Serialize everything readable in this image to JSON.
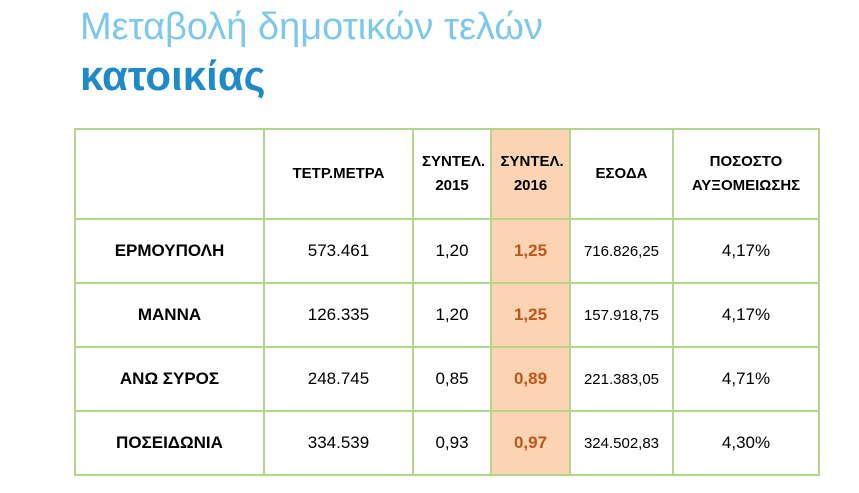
{
  "title": {
    "line1": "Μεταβολή δημοτικών τελών",
    "line2": "κατοικίας"
  },
  "table": {
    "headers": [
      "",
      "ΤΕΤΡ.ΜΕΤΡΑ",
      "ΣΥΝΤΕΛ. 2015",
      "ΣΥΝΤΕΛ. 2016",
      "ΕΣΟΔΑ",
      "ΠΟΣΟΣΤΟ ΑΥΞΟΜΕΙΩΣΗΣ"
    ],
    "rows": [
      [
        "ΕΡΜΟΥΠΟΛΗ",
        "573.461",
        "1,20",
        "1,25",
        "716.826,25",
        "4,17%"
      ],
      [
        "ΜΑΝΝΑ",
        "126.335",
        "1,20",
        "1,25",
        "157.918,75",
        "4,17%"
      ],
      [
        "ΑΝΩ ΣΥΡΟΣ",
        "248.745",
        "0,85",
        "0,89",
        "221.383,05",
        "4,71%"
      ],
      [
        "ΠΟΣΕΙΔΩΝΙΑ",
        "334.539",
        "0,93",
        "0,97",
        "324.502,83",
        "4,30%"
      ]
    ],
    "highlight_color": "#fbd4b4",
    "highlight_text_color": "#c0561c",
    "border_color": "#b5d58a"
  }
}
